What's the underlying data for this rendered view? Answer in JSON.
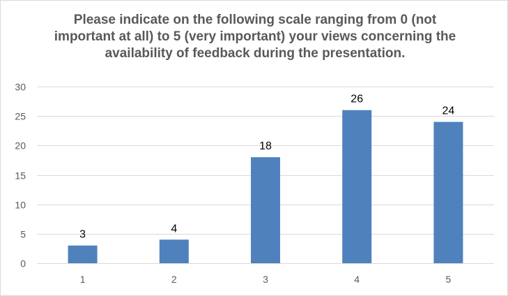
{
  "chart_data": {
    "type": "bar",
    "title": "Please indicate on the following scale ranging from 0 (not important at all) to 5 (very important) your views concerning the availability of feedback during the presentation.",
    "categories": [
      "1",
      "2",
      "3",
      "4",
      "5"
    ],
    "values": [
      3,
      4,
      18,
      26,
      24
    ],
    "data_labels": [
      "3",
      "4",
      "18",
      "26",
      "24"
    ],
    "xlabel": "",
    "ylabel": "",
    "ylim": [
      0,
      30
    ],
    "y_ticks": [
      0,
      5,
      10,
      15,
      20,
      25,
      30
    ],
    "grid": true,
    "legend": "none",
    "bar_color": "#4f81bd"
  }
}
